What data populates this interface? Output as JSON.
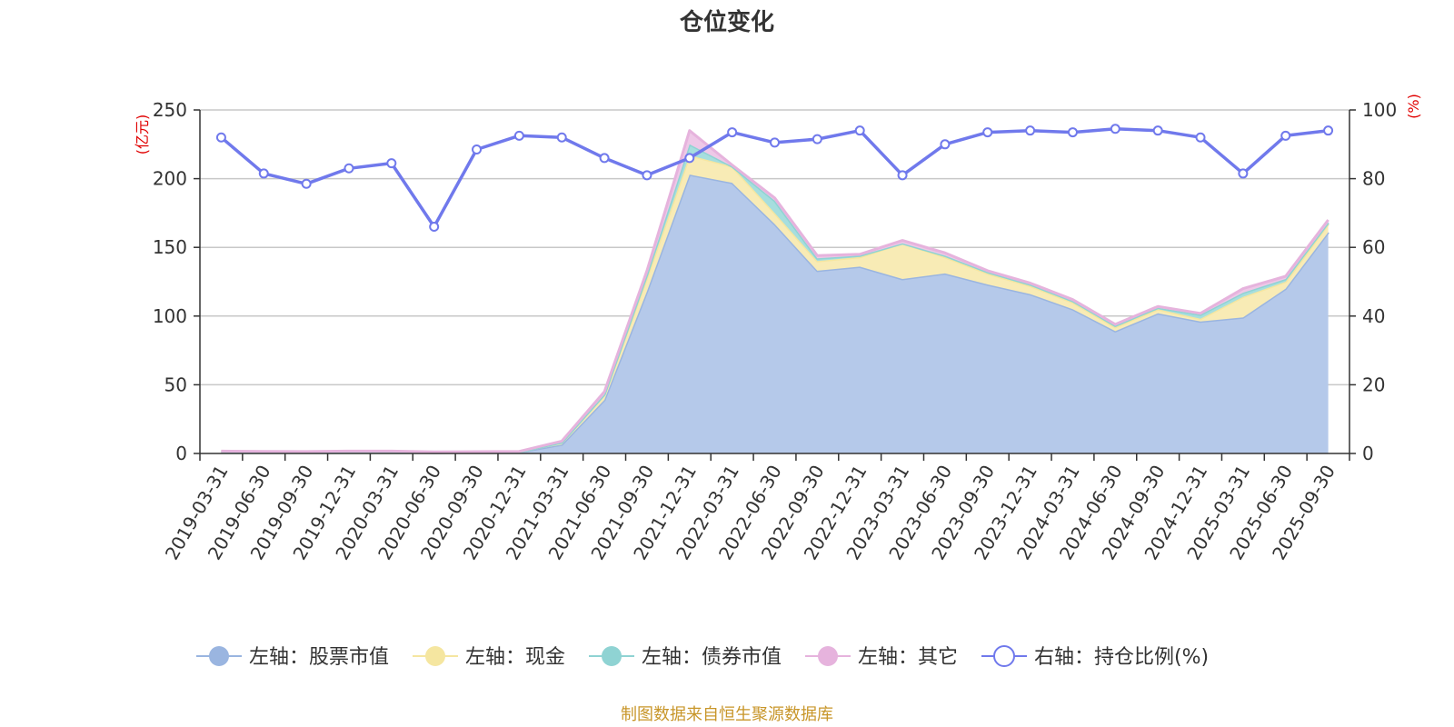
{
  "chart_data": {
    "type": "area",
    "title": "仓位变化",
    "source": "制图数据来自恒生聚源数据库",
    "left_axis_unit": "(亿元)",
    "right_axis_unit": "(%)",
    "left_ylim": [
      0,
      250
    ],
    "left_ticks": [
      "0",
      "50",
      "100",
      "150",
      "200",
      "250"
    ],
    "right_ylim": [
      0,
      100
    ],
    "right_ticks": [
      "0",
      "20",
      "40",
      "60",
      "80",
      "100"
    ],
    "grid": true,
    "legend_position": "bottom",
    "categories": [
      "2019-03-31",
      "2019-06-30",
      "2019-09-30",
      "2019-12-31",
      "2020-03-31",
      "2020-06-30",
      "2020-09-30",
      "2020-12-31",
      "2021-03-31",
      "2021-06-30",
      "2021-09-30",
      "2021-12-31",
      "2022-03-31",
      "2022-06-30",
      "2022-09-30",
      "2022-12-31",
      "2023-03-31",
      "2023-06-30",
      "2023-09-30",
      "2023-12-31",
      "2024-03-31",
      "2024-06-30",
      "2024-09-30",
      "2024-12-31",
      "2025-03-31",
      "2025-06-30",
      "2025-09-30"
    ],
    "series": [
      {
        "name": "左轴：股票市值",
        "axis": "left",
        "type": "area",
        "color": "#9ab5e0",
        "fill": "#b5c9ea",
        "values": [
          1.2,
          1.0,
          0.9,
          1.2,
          1.2,
          0.6,
          0.8,
          1.0,
          6.5,
          39,
          118,
          203,
          197,
          167,
          133,
          136,
          127,
          131,
          123,
          116,
          105,
          89,
          102,
          96,
          99,
          120,
          161
        ]
      },
      {
        "name": "左轴：现金",
        "axis": "left",
        "type": "area",
        "color": "#f5e6a0",
        "fill": "#f8ebb5",
        "values": [
          0.2,
          0.2,
          0.2,
          0.2,
          0.2,
          0.2,
          0.2,
          0.2,
          1.5,
          4,
          10,
          14,
          12,
          8,
          7,
          7,
          26,
          12,
          8,
          6,
          5,
          3,
          3,
          2,
          15,
          5,
          6
        ]
      },
      {
        "name": "左轴：债券市值",
        "axis": "left",
        "type": "area",
        "color": "#8fd3d3",
        "fill": "#a6dede",
        "values": [
          0,
          0,
          0,
          0,
          0,
          0,
          0,
          0,
          0,
          0,
          2,
          8,
          0,
          9,
          2,
          1,
          0,
          1,
          1,
          1,
          1,
          1,
          1,
          3,
          3,
          2,
          1
        ]
      },
      {
        "name": "左轴：其它",
        "axis": "left",
        "type": "area",
        "color": "#e6b3dd",
        "fill": "#eec8e7",
        "values": [
          0.3,
          0.3,
          0.3,
          0.3,
          0.3,
          0.3,
          0.3,
          0.3,
          1,
          2,
          3,
          10,
          1,
          2,
          2,
          1,
          2,
          2,
          1,
          1,
          1,
          1,
          1,
          1,
          3,
          2,
          2
        ]
      },
      {
        "name": "右轴：持仓比例(%)",
        "axis": "right",
        "type": "line",
        "color": "#7079ec",
        "values": [
          92,
          81.5,
          78.5,
          83,
          84.5,
          66,
          88.5,
          92.5,
          92,
          86,
          81,
          86,
          93.5,
          90.5,
          91.5,
          94,
          81,
          90,
          93.5,
          94,
          93.5,
          94.5,
          94,
          92,
          81.5,
          92.5,
          94
        ]
      }
    ]
  }
}
